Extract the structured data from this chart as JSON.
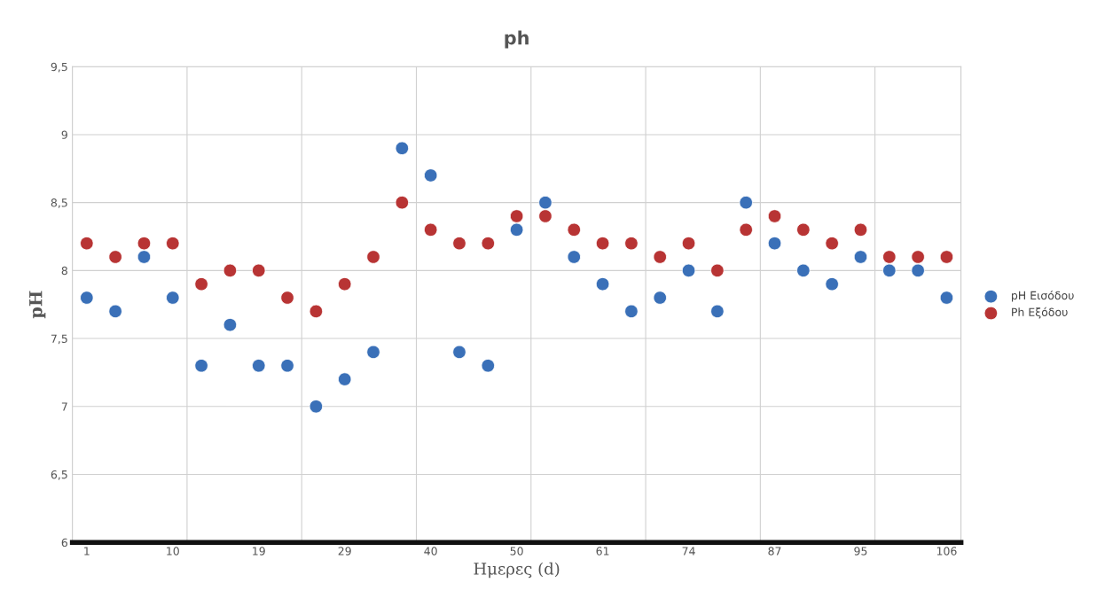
{
  "chart_data": {
    "type": "scatter",
    "title": "ph",
    "xlabel": "Ημερες (d)",
    "ylabel": "pH",
    "categories": [
      "1",
      null,
      null,
      "10",
      null,
      null,
      "19",
      null,
      null,
      "29",
      null,
      null,
      "40",
      null,
      null,
      "50",
      null,
      null,
      "61",
      null,
      null,
      "74",
      null,
      null,
      "87",
      null,
      null,
      "95",
      null,
      null,
      "106"
    ],
    "series": [
      {
        "name": "pH Εισόδου",
        "color": "#3a70b8",
        "values": [
          7.8,
          7.7,
          8.1,
          7.8,
          7.3,
          7.6,
          7.3,
          7.3,
          7.0,
          7.2,
          7.4,
          8.9,
          8.7,
          7.4,
          7.3,
          8.3,
          8.5,
          8.1,
          7.9,
          7.7,
          7.8,
          8.0,
          7.7,
          8.5,
          8.2,
          8.0,
          7.9,
          8.1,
          8.0,
          8.0,
          7.8
        ]
      },
      {
        "name": "Ph Εξόδου",
        "color": "#b83434",
        "values": [
          8.2,
          8.1,
          8.2,
          8.2,
          7.9,
          8.0,
          8.0,
          7.8,
          7.7,
          7.9,
          8.1,
          8.5,
          8.3,
          8.2,
          8.2,
          8.4,
          8.4,
          8.3,
          8.2,
          8.2,
          8.1,
          8.2,
          8.0,
          8.3,
          8.4,
          8.3,
          8.2,
          8.3,
          8.1,
          8.1,
          8.1
        ]
      }
    ],
    "ylim": [
      6,
      9.5
    ],
    "yticks": [
      {
        "value": 6,
        "label": "6"
      },
      {
        "value": 6.5,
        "label": "6,5"
      },
      {
        "value": 7,
        "label": "7"
      },
      {
        "value": 7.5,
        "label": "7,5"
      },
      {
        "value": 8,
        "label": "8"
      },
      {
        "value": 8.5,
        "label": "8,5"
      },
      {
        "value": 9,
        "label": "9"
      },
      {
        "value": 9.5,
        "label": "9,5"
      }
    ],
    "grid": true,
    "legend": "right",
    "marker": "circle"
  }
}
